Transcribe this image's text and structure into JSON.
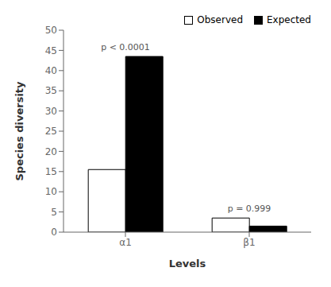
{
  "chart_data": {
    "type": "bar",
    "categories": [
      "α1",
      "β1"
    ],
    "series": [
      {
        "name": "Observed",
        "color": "#ffffff",
        "values": [
          15.5,
          3.5
        ]
      },
      {
        "name": "Expected",
        "color": "#000000",
        "values": [
          43.5,
          1.5
        ]
      }
    ],
    "xlabel": "Levels",
    "ylabel": "Species diversity",
    "ylim": [
      0,
      50
    ],
    "yticks": [
      0,
      5,
      10,
      15,
      20,
      25,
      30,
      35,
      40,
      45,
      50
    ],
    "annotations": [
      {
        "text": "p < 0.0001",
        "x": "α1"
      },
      {
        "text": "p = 0.999",
        "x": "β1"
      }
    ],
    "grid": false,
    "legend": "upper right"
  }
}
